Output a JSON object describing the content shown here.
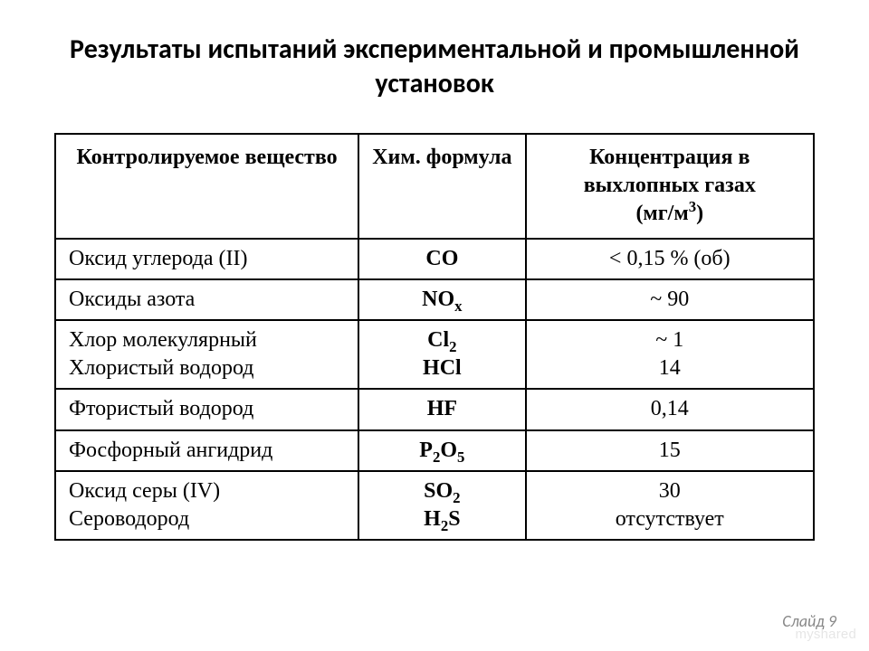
{
  "title": "Результаты испытаний экспериментальной и промышленной установок",
  "headers": {
    "col1": "Контролируемое вещество",
    "col2": "Хим. формула",
    "col3_l1": "Концентрация в выхлопных газах",
    "col3_l2": "(мг/м",
    "col3_l3": ")"
  },
  "rows": {
    "r1": {
      "name": "Оксид углерода (II)",
      "formula": "CO",
      "conc": "< 0,15 % (об)"
    },
    "r2": {
      "name": "Оксиды азота",
      "formula_base": "NO",
      "formula_sub": "x",
      "conc": "~ 90"
    },
    "r3": {
      "name_a": "Хлор молекулярный",
      "name_b": "Хлористый водород",
      "formula_a_base": "Cl",
      "formula_a_sub": "2",
      "formula_b": "HCl",
      "conc_a": "~ 1",
      "conc_b": "14"
    },
    "r4": {
      "name": "Фтористый водород",
      "formula": "HF",
      "conc": "0,14"
    },
    "r5": {
      "name": "Фосфорный ангидрид",
      "formula_p": "P",
      "formula_s1": "2",
      "formula_o": "O",
      "formula_s2": "5",
      "conc": "15"
    },
    "r6": {
      "name_a": "Оксид серы (IV)",
      "name_b": "Сероводород",
      "formula_a_base": "SO",
      "formula_a_sub": "2",
      "formula_b_h": "H",
      "formula_b_sub": "2",
      "formula_b_s": "S",
      "conc_a": "30",
      "conc_b": "отсутствует"
    }
  },
  "footer": "Слайд 9",
  "watermark": "myshared"
}
